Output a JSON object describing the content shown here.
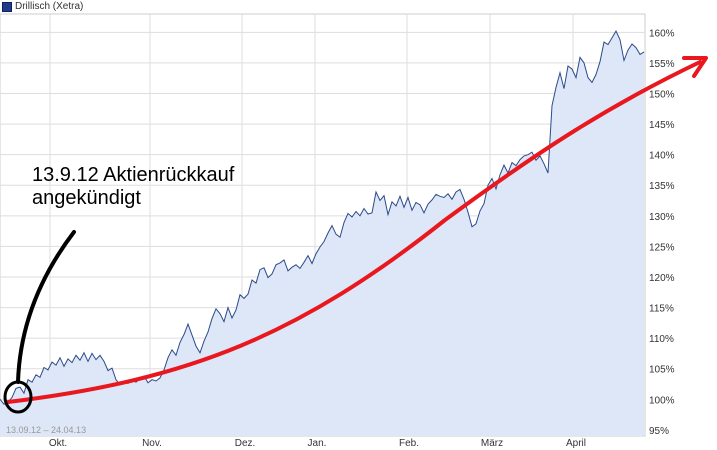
{
  "chart_data": {
    "type": "area",
    "title": "Drillisch (Xetra)",
    "date_range": "13.09.12 – 24.04.13",
    "ylim": [
      94,
      163
    ],
    "y_ticks": [
      95,
      100,
      105,
      110,
      115,
      120,
      125,
      130,
      135,
      140,
      145,
      150,
      155,
      160
    ],
    "y_unit": "%",
    "x_ticks": [
      "Okt.",
      "Nov.",
      "Dez.",
      "Jan.",
      "Feb.",
      "März",
      "April"
    ],
    "grid": true,
    "colors": {
      "line": "#2d4a8a",
      "fill": "#dde7f7",
      "trend": "#e8181e",
      "grid": "#dddddd"
    },
    "series": [
      {
        "values": [
          [
            0,
            100.0
          ],
          [
            4,
            99.2
          ],
          [
            8,
            99.5
          ],
          [
            12,
            100.3
          ],
          [
            16,
            101.8
          ],
          [
            20,
            102.0
          ],
          [
            24,
            101.0
          ],
          [
            28,
            103.2
          ],
          [
            32,
            102.8
          ],
          [
            36,
            104.0
          ],
          [
            40,
            103.6
          ],
          [
            44,
            105.2
          ],
          [
            48,
            104.8
          ],
          [
            52,
            106.1
          ],
          [
            56,
            105.6
          ],
          [
            60,
            106.8
          ],
          [
            64,
            105.4
          ],
          [
            68,
            106.6
          ],
          [
            72,
            106.0
          ],
          [
            76,
            107.2
          ],
          [
            80,
            106.4
          ],
          [
            84,
            107.6
          ],
          [
            88,
            106.2
          ],
          [
            92,
            107.5
          ],
          [
            96,
            106.5
          ],
          [
            100,
            107.2
          ],
          [
            104,
            106.2
          ],
          [
            108,
            104.7
          ],
          [
            112,
            105.1
          ],
          [
            116,
            103.2
          ],
          [
            120,
            102.4
          ],
          [
            124,
            103.0
          ],
          [
            128,
            102.6
          ],
          [
            132,
            103.1
          ],
          [
            136,
            102.8
          ],
          [
            140,
            103.4
          ],
          [
            144,
            103.8
          ],
          [
            148,
            102.7
          ],
          [
            152,
            103.2
          ],
          [
            156,
            103.0
          ],
          [
            160,
            103.5
          ],
          [
            164,
            104.8
          ],
          [
            168,
            106.8
          ],
          [
            172,
            108.1
          ],
          [
            176,
            107.2
          ],
          [
            180,
            109.3
          ],
          [
            184,
            110.6
          ],
          [
            188,
            112.3
          ],
          [
            192,
            110.5
          ],
          [
            196,
            108.7
          ],
          [
            200,
            107.6
          ],
          [
            204,
            109.5
          ],
          [
            208,
            111.0
          ],
          [
            212,
            113.2
          ],
          [
            216,
            114.8
          ],
          [
            220,
            114.0
          ],
          [
            224,
            112.7
          ],
          [
            228,
            115.0
          ],
          [
            232,
            113.3
          ],
          [
            236,
            114.6
          ],
          [
            240,
            117.1
          ],
          [
            244,
            116.5
          ],
          [
            248,
            117.2
          ],
          [
            252,
            119.5
          ],
          [
            256,
            119.0
          ],
          [
            260,
            121.2
          ],
          [
            264,
            121.5
          ],
          [
            268,
            119.9
          ],
          [
            272,
            120.5
          ],
          [
            276,
            122.0
          ],
          [
            280,
            122.3
          ],
          [
            284,
            122.8
          ],
          [
            288,
            121.0
          ],
          [
            292,
            121.6
          ],
          [
            296,
            122.0
          ],
          [
            300,
            121.4
          ],
          [
            304,
            122.4
          ],
          [
            308,
            123.5
          ],
          [
            312,
            122.2
          ],
          [
            316,
            123.8
          ],
          [
            320,
            124.9
          ],
          [
            324,
            125.8
          ],
          [
            328,
            127.2
          ],
          [
            332,
            128.4
          ],
          [
            336,
            127.0
          ],
          [
            340,
            126.5
          ],
          [
            344,
            128.9
          ],
          [
            348,
            130.4
          ],
          [
            352,
            129.8
          ],
          [
            356,
            130.7
          ],
          [
            360,
            130.0
          ],
          [
            364,
            131.2
          ],
          [
            368,
            130.3
          ],
          [
            372,
            130.5
          ],
          [
            376,
            133.9
          ],
          [
            380,
            132.5
          ],
          [
            384,
            133.3
          ],
          [
            388,
            130.2
          ],
          [
            392,
            132.3
          ],
          [
            396,
            131.6
          ],
          [
            400,
            133.2
          ],
          [
            404,
            131.4
          ],
          [
            408,
            133.0
          ],
          [
            412,
            130.9
          ],
          [
            416,
            132.2
          ],
          [
            420,
            131.8
          ],
          [
            424,
            130.5
          ],
          [
            428,
            131.9
          ],
          [
            432,
            132.6
          ],
          [
            436,
            133.5
          ],
          [
            440,
            133.2
          ],
          [
            444,
            133.0
          ],
          [
            448,
            133.6
          ],
          [
            452,
            132.7
          ],
          [
            456,
            133.9
          ],
          [
            460,
            134.3
          ],
          [
            464,
            132.7
          ],
          [
            468,
            130.6
          ],
          [
            472,
            128.2
          ],
          [
            476,
            128.7
          ],
          [
            480,
            130.8
          ],
          [
            484,
            132.0
          ],
          [
            488,
            135.0
          ],
          [
            492,
            136.1
          ],
          [
            496,
            134.4
          ],
          [
            500,
            136.7
          ],
          [
            504,
            138.3
          ],
          [
            508,
            137.0
          ],
          [
            512,
            138.7
          ],
          [
            516,
            138.2
          ],
          [
            520,
            139.2
          ],
          [
            524,
            139.8
          ],
          [
            528,
            140.0
          ],
          [
            532,
            140.4
          ],
          [
            536,
            139.1
          ],
          [
            540,
            139.8
          ],
          [
            544,
            138.5
          ],
          [
            548,
            137.0
          ],
          [
            552,
            148.0
          ],
          [
            556,
            151.0
          ],
          [
            560,
            153.4
          ],
          [
            564,
            150.8
          ],
          [
            568,
            154.5
          ],
          [
            572,
            154.0
          ],
          [
            576,
            152.6
          ],
          [
            580,
            155.9
          ],
          [
            584,
            155.0
          ],
          [
            588,
            152.6
          ],
          [
            592,
            151.8
          ],
          [
            596,
            153.1
          ],
          [
            600,
            155.2
          ],
          [
            604,
            158.4
          ],
          [
            608,
            158.0
          ],
          [
            612,
            159.1
          ],
          [
            616,
            160.2
          ],
          [
            620,
            158.8
          ],
          [
            624,
            155.4
          ],
          [
            628,
            157.1
          ],
          [
            632,
            158.1
          ],
          [
            636,
            157.5
          ],
          [
            640,
            156.4
          ],
          [
            644,
            156.8
          ]
        ]
      }
    ],
    "annotation": [
      "13.9.12 Aktienrückkauf",
      "angekündigt"
    ]
  }
}
